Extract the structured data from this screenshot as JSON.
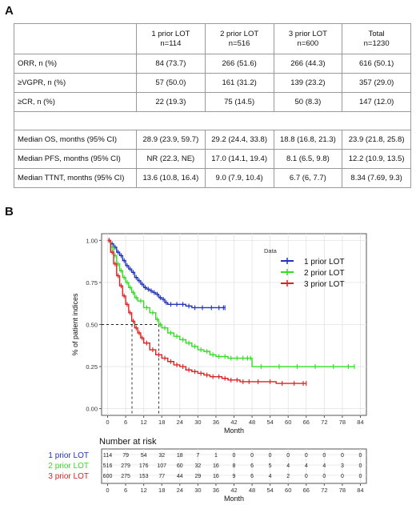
{
  "panel_a": {
    "letter": "A",
    "columns": [
      {
        "title": "1 prior LOT",
        "n": "n=114"
      },
      {
        "title": "2 prior LOT",
        "n": "n=516"
      },
      {
        "title": "3 prior LOT",
        "n": "n=600"
      },
      {
        "title": "Total",
        "n": "n=1230"
      }
    ],
    "rows_response": [
      {
        "label": "ORR, n (%)",
        "values": [
          "84 (73.7)",
          "266 (51.6)",
          "266 (44.3)",
          "616 (50.1)"
        ]
      },
      {
        "label": "≥VGPR, n (%)",
        "values": [
          "57 (50.0)",
          "161 (31.2)",
          "139 (23.2)",
          "357 (29.0)"
        ]
      },
      {
        "label": "≥CR, n (%)",
        "values": [
          "22 (19.3)",
          "75 (14.5)",
          "50 (8.3)",
          "147 (12.0)"
        ]
      }
    ],
    "rows_survival": [
      {
        "label": "Median OS, months (95% CI)",
        "values": [
          "28.9 (23.9, 59.7)",
          "29.2 (24.4, 33.8)",
          "18.8 (16.8, 21.3)",
          "23.9 (21.8, 25.8)"
        ]
      },
      {
        "label": "Median PFS, months (95% CI)",
        "values": [
          "NR (22.3, NE)",
          "17.0 (14.1, 19.4)",
          "8.1 (6.5, 9.8)",
          "12.2 (10.9, 13.5)"
        ]
      },
      {
        "label": "Median TTNT, months (95% CI)",
        "values": [
          "13.6 (10.8, 16.4)",
          "9.0 (7.9, 10.4)",
          "6.7 (6, 7.7)",
          "8.34 (7.69, 9.3)"
        ]
      }
    ]
  },
  "panel_b": {
    "letter": "B",
    "risk_title": "Number at risk"
  },
  "chart_data": {
    "type": "line",
    "subtype": "kaplan-meier",
    "xlabel": "Month",
    "ylabel": "% of patient indices",
    "xlim": [
      -2,
      86
    ],
    "ylim": [
      -0.04,
      1.04
    ],
    "xticks": [
      0,
      6,
      12,
      18,
      24,
      30,
      36,
      42,
      48,
      54,
      60,
      66,
      72,
      78,
      84
    ],
    "yticks": [
      0.0,
      0.25,
      0.5,
      0.75,
      1.0
    ],
    "ytick_labels": [
      "0.00",
      "0.25",
      "0.50",
      "0.75",
      "1.00"
    ],
    "grid": true,
    "legend_title": "Data",
    "legend_position": "top-right",
    "median_reference": {
      "y": 0.5,
      "x_values": [
        8.1,
        17.0
      ]
    },
    "series": [
      {
        "name": "1 prior LOT",
        "color": "#2233bb",
        "x": [
          0,
          1,
          2,
          3,
          4,
          5,
          6,
          7,
          8,
          9,
          10,
          11,
          12,
          13,
          14,
          15,
          16,
          17,
          18,
          19,
          20,
          22,
          24,
          26,
          28,
          30,
          33,
          36,
          38,
          39
        ],
        "y": [
          1.0,
          0.98,
          0.96,
          0.93,
          0.91,
          0.88,
          0.85,
          0.83,
          0.81,
          0.78,
          0.76,
          0.74,
          0.72,
          0.71,
          0.7,
          0.69,
          0.68,
          0.66,
          0.65,
          0.63,
          0.62,
          0.62,
          0.62,
          0.61,
          0.6,
          0.6,
          0.6,
          0.6,
          0.6,
          0.6
        ]
      },
      {
        "name": "2 prior LOT",
        "color": "#33dd22",
        "x": [
          0,
          1,
          2,
          3,
          4,
          5,
          6,
          7,
          8,
          9,
          10,
          12,
          14,
          16,
          17,
          18,
          20,
          22,
          24,
          26,
          28,
          30,
          32,
          34,
          36,
          38,
          40,
          42,
          44,
          46,
          47,
          48,
          54,
          60,
          66,
          72,
          78,
          82
        ],
        "y": [
          1.0,
          0.96,
          0.91,
          0.86,
          0.82,
          0.78,
          0.75,
          0.72,
          0.69,
          0.66,
          0.64,
          0.6,
          0.57,
          0.53,
          0.5,
          0.48,
          0.45,
          0.43,
          0.41,
          0.39,
          0.37,
          0.35,
          0.34,
          0.32,
          0.31,
          0.31,
          0.3,
          0.3,
          0.3,
          0.3,
          0.3,
          0.25,
          0.25,
          0.25,
          0.25,
          0.25,
          0.25,
          0.25
        ]
      },
      {
        "name": "3 prior LOT",
        "color": "#dd2222",
        "x": [
          0,
          1,
          2,
          3,
          4,
          5,
          6,
          7,
          8,
          9,
          10,
          11,
          12,
          14,
          16,
          18,
          20,
          22,
          24,
          26,
          28,
          30,
          32,
          34,
          36,
          38,
          40,
          42,
          44,
          46,
          48,
          52,
          56,
          60,
          64,
          66
        ],
        "y": [
          1.0,
          0.93,
          0.86,
          0.79,
          0.73,
          0.67,
          0.62,
          0.57,
          0.52,
          0.48,
          0.45,
          0.42,
          0.39,
          0.35,
          0.32,
          0.3,
          0.28,
          0.26,
          0.25,
          0.23,
          0.22,
          0.21,
          0.2,
          0.19,
          0.19,
          0.18,
          0.17,
          0.17,
          0.16,
          0.16,
          0.16,
          0.16,
          0.15,
          0.15,
          0.15,
          0.15
        ]
      }
    ],
    "risk_table": {
      "title": "Number at risk",
      "xlabel": "Month",
      "times": [
        0,
        6,
        12,
        18,
        24,
        30,
        36,
        42,
        48,
        54,
        60,
        66,
        72,
        78,
        84
      ],
      "rows": [
        {
          "name": "1 prior LOT",
          "color": "#2233bb",
          "values": [
            114,
            79,
            54,
            32,
            18,
            7,
            1,
            0,
            0,
            0,
            0,
            0,
            0,
            0,
            0
          ]
        },
        {
          "name": "2 prior LOT",
          "color": "#33dd22",
          "values": [
            516,
            279,
            176,
            107,
            60,
            32,
            16,
            8,
            6,
            5,
            4,
            4,
            4,
            3,
            0
          ]
        },
        {
          "name": "3 prior LOT",
          "color": "#dd2222",
          "values": [
            600,
            275,
            153,
            77,
            44,
            29,
            16,
            9,
            6,
            4,
            2,
            0,
            0,
            0,
            0
          ]
        }
      ]
    }
  }
}
